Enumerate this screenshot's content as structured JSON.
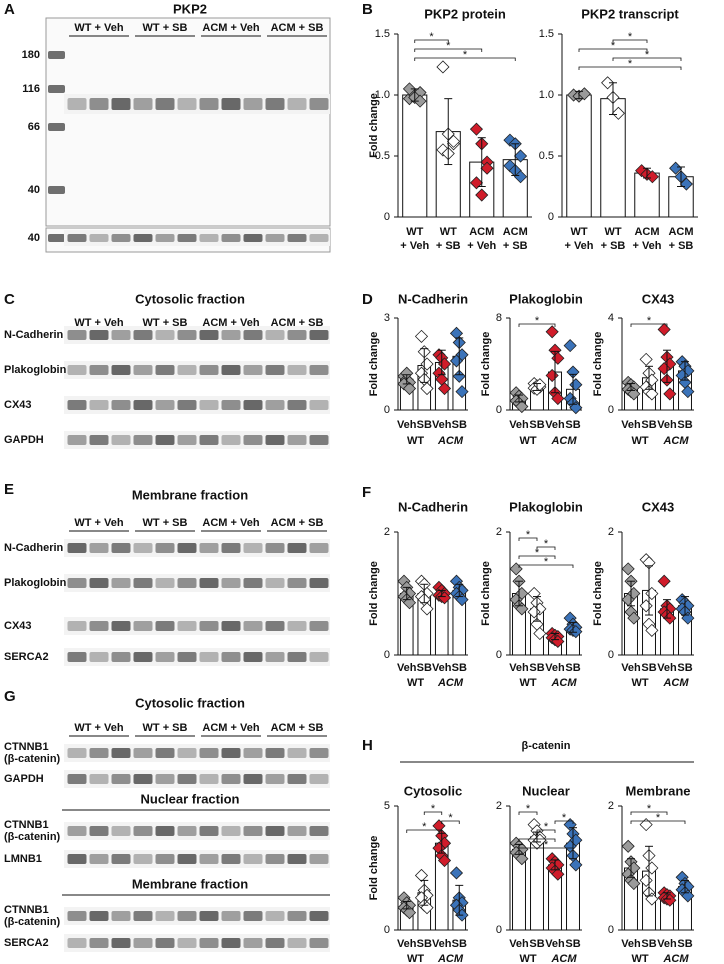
{
  "blots": [
    {
      "label": "A",
      "title": "PKP2",
      "groups": [
        "WT + Veh",
        "WT + SB",
        "ACM + Veh",
        "ACM + SB"
      ],
      "markers": [
        180,
        116,
        66,
        40
      ],
      "loading_marker": 40
    },
    {
      "label": "C",
      "title": "Cytosolic fraction",
      "groups": [
        "WT + Veh",
        "WT + SB",
        "ACM + Veh",
        "ACM + SB"
      ],
      "rows": [
        "N-Cadherin",
        "Plakoglobin",
        "CX43",
        "GAPDH"
      ]
    },
    {
      "label": "E",
      "title": "Membrane fraction",
      "groups": [
        "WT + Veh",
        "WT + SB",
        "ACM + Veh",
        "ACM + SB"
      ],
      "rows": [
        "N-Cadherin",
        "Plakoglobin",
        "CX43",
        "SERCA2"
      ]
    },
    {
      "label": "G",
      "groups": [
        "WT + Veh",
        "WT + SB",
        "ACM + Veh",
        "ACM + SB"
      ],
      "fractions": [
        {
          "title": "Cytosolic fraction",
          "rows": [
            [
              "CTNNB1",
              "(β-catenin)"
            ],
            [
              "GAPDH"
            ]
          ]
        },
        {
          "title": "Nuclear fraction",
          "rows": [
            [
              "CTNNB1",
              "(β-catenin)"
            ],
            [
              "LMNB1"
            ]
          ]
        },
        {
          "title": "Membrane fraction",
          "rows": [
            [
              "CTNNB1",
              "(β-catenin)"
            ],
            [
              "SERCA2"
            ]
          ]
        }
      ]
    }
  ],
  "chart_panels": [
    "B",
    "D",
    "F",
    "H"
  ],
  "beta_catenin_title": "β-catenin",
  "chart_data": [
    {
      "type": "bar",
      "title": "PKP2 protein",
      "ylabel": "Fold change",
      "categories": [
        "WT",
        "WT",
        "ACM",
        "ACM"
      ],
      "treatments": [
        "+ Veh",
        "+ SB",
        "+ Veh",
        "+ SB"
      ],
      "category_colors": [
        "#9a9a9a",
        "#111111",
        "#c8102e",
        "#3b73b9"
      ],
      "point_colors": [
        "#9a9a9a",
        "#ffffff",
        "#d01c2a",
        "#3b73b9"
      ],
      "values": [
        1.0,
        0.7,
        0.45,
        0.47
      ],
      "errors": [
        0.05,
        0.27,
        0.2,
        0.13
      ],
      "points": [
        [
          0.97,
          1.0,
          1.02,
          1.05,
          0.98,
          0.95
        ],
        [
          1.23,
          0.68,
          0.6,
          0.55,
          0.52,
          0.62
        ],
        [
          0.72,
          0.6,
          0.45,
          0.28,
          0.18,
          0.4
        ],
        [
          0.63,
          0.6,
          0.5,
          0.42,
          0.38,
          0.33
        ]
      ],
      "ylim": [
        0,
        1.5
      ],
      "yticks": [
        0,
        0.5,
        {
          "value": 1,
          "label": "1.0"
        },
        1.5
      ],
      "significance": [
        {
          "label": "*",
          "pair": [
            0,
            1
          ]
        },
        {
          "label": "*",
          "pair": [
            0,
            2
          ]
        },
        {
          "label": "*",
          "pair": [
            0,
            3
          ]
        }
      ]
    },
    {
      "type": "bar",
      "title": "PKP2 transcript",
      "categories": [
        "WT",
        "WT",
        "ACM",
        "ACM"
      ],
      "treatments": [
        "+ Veh",
        "+ SB",
        "+ Veh",
        "+ SB"
      ],
      "category_colors": [
        "#9a9a9a",
        "#111111",
        "#c8102e",
        "#3b73b9"
      ],
      "point_colors": [
        "#9a9a9a",
        "#ffffff",
        "#d01c2a",
        "#3b73b9"
      ],
      "values": [
        1.0,
        0.97,
        0.36,
        0.33
      ],
      "errors": [
        0.03,
        0.13,
        0.04,
        0.08
      ],
      "points": [
        [
          1.0,
          0.99,
          1.01
        ],
        [
          1.1,
          0.98,
          0.85
        ],
        [
          0.38,
          0.35,
          0.33
        ],
        [
          0.4,
          0.33,
          0.27
        ]
      ],
      "ylim": [
        0,
        1.5
      ],
      "yticks": [
        0,
        0.5,
        {
          "value": 1,
          "label": "1.0"
        },
        1.5
      ],
      "significance": [
        {
          "label": "*",
          "pair": [
            1,
            2
          ]
        },
        {
          "label": "*",
          "pair": [
            0,
            2
          ]
        },
        {
          "label": "*",
          "pair": [
            1,
            3
          ]
        },
        {
          "label": "*",
          "pair": [
            0,
            3
          ]
        }
      ]
    },
    {
      "type": "bar",
      "title": "N-Cadherin",
      "ylabel": "Fold change",
      "categories": [
        "Veh",
        "SB",
        "Veh",
        "SB"
      ],
      "groups": [
        "WT",
        "ACM"
      ],
      "category_colors": [
        "#9a9a9a",
        "#111111",
        "#c8102e",
        "#3b73b9"
      ],
      "point_colors": [
        "#9a9a9a",
        "#ffffff",
        "#d01c2a",
        "#3b73b9"
      ],
      "values": [
        1.0,
        1.45,
        1.55,
        1.75
      ],
      "errors": [
        0.15,
        0.55,
        0.4,
        0.6
      ],
      "points": [
        [
          1.1,
          1.0,
          0.9,
          0.85,
          1.2,
          0.7
        ],
        [
          2.4,
          1.9,
          1.5,
          1.2,
          1.0,
          0.7
        ],
        [
          1.8,
          1.7,
          1.5,
          1.2,
          1.0,
          0.7
        ],
        [
          2.5,
          2.2,
          1.8,
          1.6,
          1.1,
          0.6
        ]
      ],
      "ylim": [
        0,
        3
      ],
      "yticks": [
        0,
        3
      ],
      "significance": []
    },
    {
      "type": "bar",
      "title": "Plakoglobin",
      "ylabel": "Fold change",
      "categories": [
        "Veh",
        "SB",
        "Veh",
        "SB"
      ],
      "groups": [
        "WT",
        "ACM"
      ],
      "category_colors": [
        "#9a9a9a",
        "#111111",
        "#c8102e",
        "#3b73b9"
      ],
      "point_colors": [
        "#9a9a9a",
        "#ffffff",
        "#d01c2a",
        "#3b73b9"
      ],
      "values": [
        1.0,
        2.0,
        3.3,
        1.8
      ],
      "errors": [
        0.3,
        0.3,
        1.8,
        1.3
      ],
      "points": [
        [
          1.5,
          1.2,
          1.0,
          0.8,
          0.6,
          0.3
        ],
        [
          2.3,
          2.1,
          2.0,
          1.9,
          1.8,
          2.2
        ],
        [
          6.8,
          5.2,
          4.5,
          3.0,
          1.5,
          1.0
        ],
        [
          5.6,
          3.3,
          2.2,
          1.0,
          0.6,
          0.2
        ]
      ],
      "ylim": [
        0,
        8
      ],
      "yticks": [
        0,
        8
      ],
      "significance": [
        {
          "label": "*",
          "pair": [
            0,
            2
          ]
        }
      ]
    },
    {
      "type": "bar",
      "title": "CX43",
      "ylabel": "Fold change",
      "categories": [
        "Veh",
        "SB",
        "Veh",
        "SB"
      ],
      "groups": [
        "WT",
        "ACM"
      ],
      "category_colors": [
        "#9a9a9a",
        "#111111",
        "#c8102e",
        "#3b73b9"
      ],
      "point_colors": [
        "#9a9a9a",
        "#ffffff",
        "#d01c2a",
        "#3b73b9"
      ],
      "values": [
        1.0,
        1.4,
        1.9,
        1.7
      ],
      "errors": [
        0.15,
        0.5,
        0.7,
        0.4
      ],
      "points": [
        [
          1.2,
          1.1,
          1.0,
          0.9,
          0.8,
          0.7
        ],
        [
          2.2,
          1.6,
          1.3,
          1.0,
          0.8,
          0.7
        ],
        [
          3.5,
          2.3,
          2.0,
          1.8,
          1.3,
          0.7
        ],
        [
          2.1,
          1.9,
          1.7,
          1.5,
          1.2,
          0.8
        ]
      ],
      "ylim": [
        0,
        4
      ],
      "yticks": [
        0,
        4
      ],
      "significance": [
        {
          "label": "*",
          "pair": [
            0,
            2
          ]
        }
      ]
    },
    {
      "type": "bar",
      "title": "N-Cadherin",
      "ylabel": "Fold change",
      "categories": [
        "Veh",
        "SB",
        "Veh",
        "SB"
      ],
      "groups": [
        "WT",
        "ACM"
      ],
      "category_colors": [
        "#9a9a9a",
        "#111111",
        "#c8102e",
        "#3b73b9"
      ],
      "point_colors": [
        "#9a9a9a",
        "#ffffff",
        "#d01c2a",
        "#3b73b9"
      ],
      "values": [
        1.0,
        1.0,
        1.0,
        1.05
      ],
      "errors": [
        0.1,
        0.15,
        0.05,
        0.1
      ],
      "points": [
        [
          1.2,
          1.1,
          1.0,
          0.95,
          0.9,
          0.85
        ],
        [
          1.2,
          1.15,
          1.0,
          0.95,
          0.9,
          0.75
        ],
        [
          1.1,
          1.05,
          1.0,
          0.97,
          0.95,
          0.93
        ],
        [
          1.2,
          1.1,
          1.05,
          1.0,
          0.95,
          0.9
        ]
      ],
      "ylim": [
        0,
        2
      ],
      "yticks": [
        0,
        2
      ],
      "significance": []
    },
    {
      "type": "bar",
      "title": "Plakoglobin",
      "ylabel": "Fold change",
      "categories": [
        "Veh",
        "SB",
        "Veh",
        "SB"
      ],
      "groups": [
        "WT",
        "ACM"
      ],
      "category_colors": [
        "#9a9a9a",
        "#111111",
        "#c8102e",
        "#3b73b9"
      ],
      "point_colors": [
        "#9a9a9a",
        "#ffffff",
        "#d01c2a",
        "#3b73b9"
      ],
      "values": [
        1.0,
        0.75,
        0.3,
        0.45
      ],
      "errors": [
        0.2,
        0.2,
        0.05,
        0.08
      ],
      "points": [
        [
          1.4,
          1.2,
          1.0,
          0.9,
          0.8,
          0.75
        ],
        [
          1.0,
          0.85,
          0.75,
          0.7,
          0.5,
          0.35
        ],
        [
          0.35,
          0.32,
          0.3,
          0.28,
          0.25,
          0.22
        ],
        [
          0.6,
          0.5,
          0.45,
          0.42,
          0.4,
          0.38
        ]
      ],
      "ylim": [
        0,
        2
      ],
      "yticks": [
        0,
        2
      ],
      "significance": [
        {
          "label": "*",
          "pair": [
            0,
            1
          ]
        },
        {
          "label": "*",
          "pair": [
            1,
            2
          ]
        },
        {
          "label": "*",
          "pair": [
            0,
            2
          ]
        },
        {
          "label": "*",
          "pair": [
            0,
            3
          ]
        }
      ]
    },
    {
      "type": "bar",
      "title": "CX43",
      "ylabel": "Fold change",
      "categories": [
        "Veh",
        "SB",
        "Veh",
        "SB"
      ],
      "groups": [
        "WT",
        "ACM"
      ],
      "category_colors": [
        "#9a9a9a",
        "#111111",
        "#c8102e",
        "#3b73b9"
      ],
      "point_colors": [
        "#9a9a9a",
        "#ffffff",
        "#d01c2a",
        "#3b73b9"
      ],
      "values": [
        1.0,
        1.05,
        0.75,
        0.8
      ],
      "errors": [
        0.2,
        0.4,
        0.15,
        0.15
      ],
      "points": [
        [
          1.4,
          1.2,
          1.0,
          0.9,
          0.7,
          0.6
        ],
        [
          1.55,
          1.5,
          1.0,
          0.8,
          0.5,
          0.4
        ],
        [
          1.2,
          0.8,
          0.75,
          0.7,
          0.65,
          0.6
        ],
        [
          0.9,
          0.85,
          0.8,
          0.75,
          0.7,
          0.6
        ]
      ],
      "ylim": [
        0,
        2
      ],
      "yticks": [
        0,
        2
      ],
      "significance": []
    },
    {
      "type": "bar",
      "title": "Cytosolic",
      "ylabel": "Fold change",
      "categories": [
        "Veh",
        "SB",
        "Veh",
        "SB"
      ],
      "groups": [
        "WT",
        "ACM"
      ],
      "category_colors": [
        "#9a9a9a",
        "#111111",
        "#c8102e",
        "#3b73b9"
      ],
      "point_colors": [
        "#9a9a9a",
        "#ffffff",
        "#d01c2a",
        "#3b73b9"
      ],
      "values": [
        1.0,
        1.5,
        3.5,
        1.2
      ],
      "errors": [
        0.15,
        0.5,
        0.4,
        0.6
      ],
      "points": [
        [
          1.3,
          1.1,
          1.0,
          0.9,
          0.8,
          0.7
        ],
        [
          2.2,
          1.6,
          1.4,
          1.3,
          1.0,
          0.9
        ],
        [
          4.2,
          3.8,
          3.5,
          3.3,
          3.0,
          2.8
        ],
        [
          2.3,
          1.3,
          1.1,
          1.0,
          0.8,
          0.6
        ]
      ],
      "ylim": [
        0,
        5
      ],
      "yticks": [
        0,
        5
      ],
      "significance": [
        {
          "label": "*",
          "pair": [
            1,
            2
          ]
        },
        {
          "label": "*",
          "pair": [
            2,
            3
          ]
        },
        {
          "label": "*",
          "pair": [
            0,
            2
          ]
        }
      ]
    },
    {
      "type": "bar",
      "title": "Nuclear",
      "categories": [
        "Veh",
        "SB",
        "Veh",
        "SB"
      ],
      "groups": [
        "WT",
        "ACM"
      ],
      "category_colors": [
        "#9a9a9a",
        "#111111",
        "#c8102e",
        "#3b73b9"
      ],
      "point_colors": [
        "#9a9a9a",
        "#ffffff",
        "#d01c2a",
        "#3b73b9"
      ],
      "values": [
        1.3,
        1.5,
        1.05,
        1.4
      ],
      "errors": [
        0.08,
        0.08,
        0.08,
        0.25
      ],
      "points": [
        [
          1.4,
          1.35,
          1.3,
          1.25,
          1.2,
          1.15
        ],
        [
          1.7,
          1.6,
          1.5,
          1.45,
          1.4,
          1.45
        ],
        [
          1.15,
          1.1,
          1.05,
          1.0,
          0.95,
          0.9
        ],
        [
          1.7,
          1.55,
          1.45,
          1.35,
          1.2,
          1.05
        ]
      ],
      "ylim": [
        0,
        2
      ],
      "yticks": [
        0,
        2
      ],
      "significance": [
        {
          "label": "*",
          "pair": [
            0,
            1
          ]
        },
        {
          "label": "*",
          "pair": [
            2,
            3
          ]
        },
        {
          "label": "*",
          "pair": [
            1,
            2
          ]
        },
        {
          "label": "*",
          "pair": [
            0,
            2
          ]
        },
        {
          "label": "*",
          "pair": [
            0,
            3
          ]
        }
      ]
    },
    {
      "type": "bar",
      "title": "Membrane",
      "categories": [
        "Veh",
        "SB",
        "Veh",
        "SB"
      ],
      "groups": [
        "WT",
        "ACM"
      ],
      "category_colors": [
        "#9a9a9a",
        "#111111",
        "#c8102e",
        "#3b73b9"
      ],
      "point_colors": [
        "#9a9a9a",
        "#ffffff",
        "#d01c2a",
        "#3b73b9"
      ],
      "values": [
        1.0,
        0.95,
        0.55,
        0.7
      ],
      "errors": [
        0.15,
        0.4,
        0.05,
        0.1
      ],
      "points": [
        [
          1.35,
          1.1,
          1.0,
          0.9,
          0.8,
          0.75
        ],
        [
          1.7,
          1.2,
          1.0,
          0.8,
          0.6,
          0.5
        ],
        [
          0.6,
          0.57,
          0.55,
          0.52,
          0.5,
          0.48
        ],
        [
          0.85,
          0.75,
          0.7,
          0.65,
          0.6,
          0.55
        ]
      ],
      "ylim": [
        0,
        2
      ],
      "yticks": [
        0,
        2
      ],
      "significance": [
        {
          "label": "*",
          "pair": [
            0,
            2
          ]
        },
        {
          "label": "*",
          "pair": [
            0,
            3
          ]
        }
      ]
    }
  ]
}
